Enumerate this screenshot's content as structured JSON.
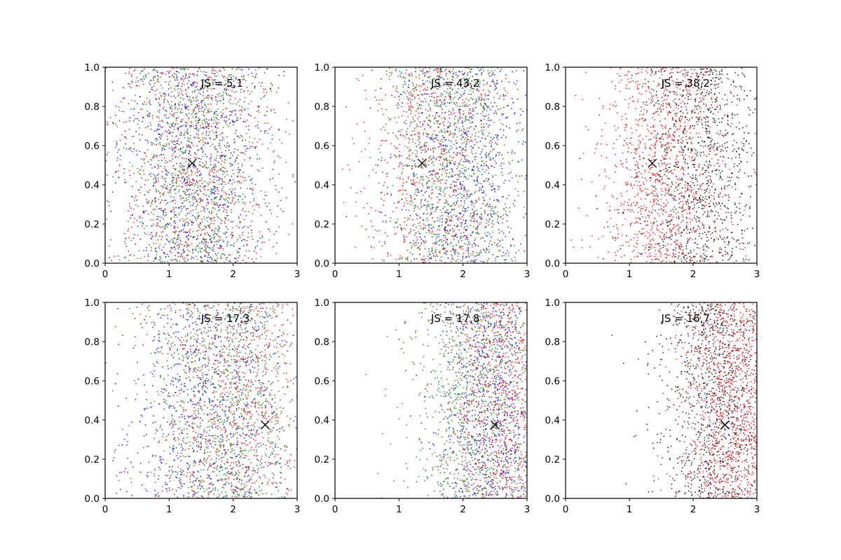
{
  "figure": {
    "background": "#ffffff",
    "layout": "2 rows x 3 columns"
  },
  "colors": {
    "red": "#ff0000",
    "green": "#008000",
    "blue": "#0000ff",
    "black": "#000000"
  },
  "marker_style": {
    "point_marker": "small dot",
    "center_marker": "x"
  },
  "chart_data": [
    {
      "type": "scatter",
      "panel": "top-left",
      "annotation": "JS = 5,1",
      "xlim": [
        0,
        3
      ],
      "ylim": [
        0,
        1
      ],
      "xticks": [
        "0",
        "1",
        "2",
        "3"
      ],
      "yticks": [
        "0.0",
        "0.2",
        "0.4",
        "0.6",
        "0.8",
        "1.0"
      ],
      "grid": false,
      "center_marker": {
        "x": 1.36,
        "y": 0.51
      },
      "series": [
        {
          "color": "#ff0000",
          "approx_count": 1600,
          "x_distribution": {
            "mean": 1.4,
            "sd": 0.6
          }
        },
        {
          "color": "#008000",
          "approx_count": 1600,
          "x_distribution": {
            "mean": 1.4,
            "sd": 0.6
          }
        },
        {
          "color": "#0000ff",
          "approx_count": 1600,
          "x_distribution": {
            "mean": 1.4,
            "sd": 0.6
          }
        }
      ]
    },
    {
      "type": "scatter",
      "panel": "top-middle",
      "annotation": "JS = 43,2",
      "xlim": [
        0,
        3
      ],
      "ylim": [
        0,
        1
      ],
      "xticks": [
        "0",
        "1",
        "2",
        "3"
      ],
      "yticks": [
        "0.0",
        "0.2",
        "0.4",
        "0.6",
        "0.8",
        "1.0"
      ],
      "grid": false,
      "center_marker": {
        "x": 1.36,
        "y": 0.51
      },
      "series": [
        {
          "color": "#ff0000",
          "approx_count": 1500,
          "x_distribution": {
            "mean": 1.55,
            "sd": 0.55
          }
        },
        {
          "color": "#008000",
          "approx_count": 1500,
          "x_distribution": {
            "mean": 1.8,
            "sd": 0.55
          }
        },
        {
          "color": "#0000ff",
          "approx_count": 1500,
          "x_distribution": {
            "mean": 2.05,
            "sd": 0.55
          }
        }
      ]
    },
    {
      "type": "scatter",
      "panel": "top-right",
      "annotation": "JS = 38,2",
      "xlim": [
        0,
        3
      ],
      "ylim": [
        0,
        1
      ],
      "xticks": [
        "0",
        "1",
        "2",
        "3"
      ],
      "yticks": [
        "0.0",
        "0.2",
        "0.4",
        "0.6",
        "0.8",
        "1.0"
      ],
      "grid": false,
      "center_marker": {
        "x": 1.36,
        "y": 0.51
      },
      "series": [
        {
          "color": "#ff0000",
          "approx_count": 2200,
          "x_distribution": {
            "mean": 1.55,
            "sd": 0.5
          }
        },
        {
          "color": "#000000",
          "approx_count": 1800,
          "x_distribution": {
            "mean": 2.15,
            "sd": 0.5
          }
        }
      ]
    },
    {
      "type": "scatter",
      "panel": "bottom-left",
      "annotation": "JS = 17,3",
      "xlim": [
        0,
        3
      ],
      "ylim": [
        0,
        1
      ],
      "xticks": [
        "0",
        "1",
        "2",
        "3"
      ],
      "yticks": [
        "0.0",
        "0.2",
        "0.4",
        "0.6",
        "0.8",
        "1.0"
      ],
      "grid": false,
      "center_marker": {
        "x": 2.5,
        "y": 0.375
      },
      "series": [
        {
          "color": "#0000ff",
          "approx_count": 1600,
          "x_distribution": {
            "mean": 1.65,
            "sd": 0.65
          }
        },
        {
          "color": "#008000",
          "approx_count": 1500,
          "x_distribution": {
            "mean": 1.9,
            "sd": 0.6
          }
        },
        {
          "color": "#ff0000",
          "approx_count": 1500,
          "x_distribution": {
            "mean": 2.0,
            "sd": 0.6
          }
        }
      ]
    },
    {
      "type": "scatter",
      "panel": "bottom-middle",
      "annotation": "JS = 17,8",
      "xlim": [
        0,
        3
      ],
      "ylim": [
        0,
        1
      ],
      "xticks": [
        "0",
        "1",
        "2",
        "3"
      ],
      "yticks": [
        "0.0",
        "0.2",
        "0.4",
        "0.6",
        "0.8",
        "1.0"
      ],
      "grid": false,
      "center_marker": {
        "x": 2.5,
        "y": 0.375
      },
      "series": [
        {
          "color": "#008000",
          "approx_count": 1500,
          "x_distribution": {
            "mean": 2.2,
            "sd": 0.55
          }
        },
        {
          "color": "#0000ff",
          "approx_count": 1500,
          "x_distribution": {
            "mean": 2.45,
            "sd": 0.45
          }
        },
        {
          "color": "#ff0000",
          "approx_count": 1600,
          "x_distribution": {
            "mean": 2.6,
            "sd": 0.4
          }
        }
      ]
    },
    {
      "type": "scatter",
      "panel": "bottom-right",
      "annotation": "JS = 16,7",
      "xlim": [
        0,
        3
      ],
      "ylim": [
        0,
        1
      ],
      "xticks": [
        "0",
        "1",
        "2",
        "3"
      ],
      "yticks": [
        "0.0",
        "0.2",
        "0.4",
        "0.6",
        "0.8",
        "1.0"
      ],
      "grid": false,
      "center_marker": {
        "x": 2.5,
        "y": 0.375
      },
      "series": [
        {
          "color": "#000000",
          "approx_count": 1800,
          "x_distribution": {
            "mean": 2.35,
            "sd": 0.45
          }
        },
        {
          "color": "#ff0000",
          "approx_count": 2200,
          "x_distribution": {
            "mean": 2.6,
            "sd": 0.38
          }
        }
      ]
    }
  ]
}
